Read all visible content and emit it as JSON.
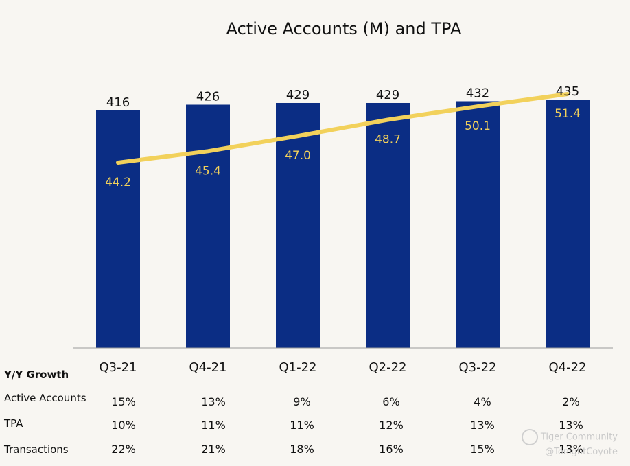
{
  "chart_data": {
    "type": "bar",
    "title": "Active Accounts (M) and TPA",
    "categories": [
      "Q3-21",
      "Q4-21",
      "Q1-22",
      "Q2-22",
      "Q3-22",
      "Q4-22"
    ],
    "series": [
      {
        "type": "bar",
        "values": [
          416,
          426,
          429,
          429,
          432,
          435
        ]
      },
      {
        "type": "line",
        "values": [
          44.2,
          45.4,
          47.0,
          48.7,
          50.1,
          51.4
        ]
      }
    ],
    "bar_value_range": [
      0,
      435
    ],
    "line_value_range": [
      44.2,
      51.4
    ],
    "value_labels_bar": [
      "416",
      "426",
      "429",
      "429",
      "432",
      "435"
    ],
    "value_labels_line": [
      "44.2",
      "45.4",
      "47.0",
      "48.7",
      "50.1",
      "51.4"
    ],
    "xlabel": "",
    "ylabel": "",
    "grid": false,
    "legend": "none"
  },
  "colors": {
    "bar": "#0b2d84",
    "line": "#f2d15b",
    "background": "#f8f6f2"
  },
  "growth_table": {
    "title": "Y/Y Growth",
    "rows": [
      {
        "label": "Active Accounts",
        "values": [
          "15%",
          "13%",
          "9%",
          "6%",
          "4%",
          "2%"
        ]
      },
      {
        "label": "TPA",
        "values": [
          "10%",
          "11%",
          "11%",
          "12%",
          "13%",
          "13%"
        ]
      },
      {
        "label": "Transactions",
        "values": [
          "22%",
          "21%",
          "18%",
          "16%",
          "15%",
          "13%"
        ]
      }
    ]
  },
  "watermark": {
    "line1": "Tiger Community",
    "line2": "@TonightCoyote"
  }
}
